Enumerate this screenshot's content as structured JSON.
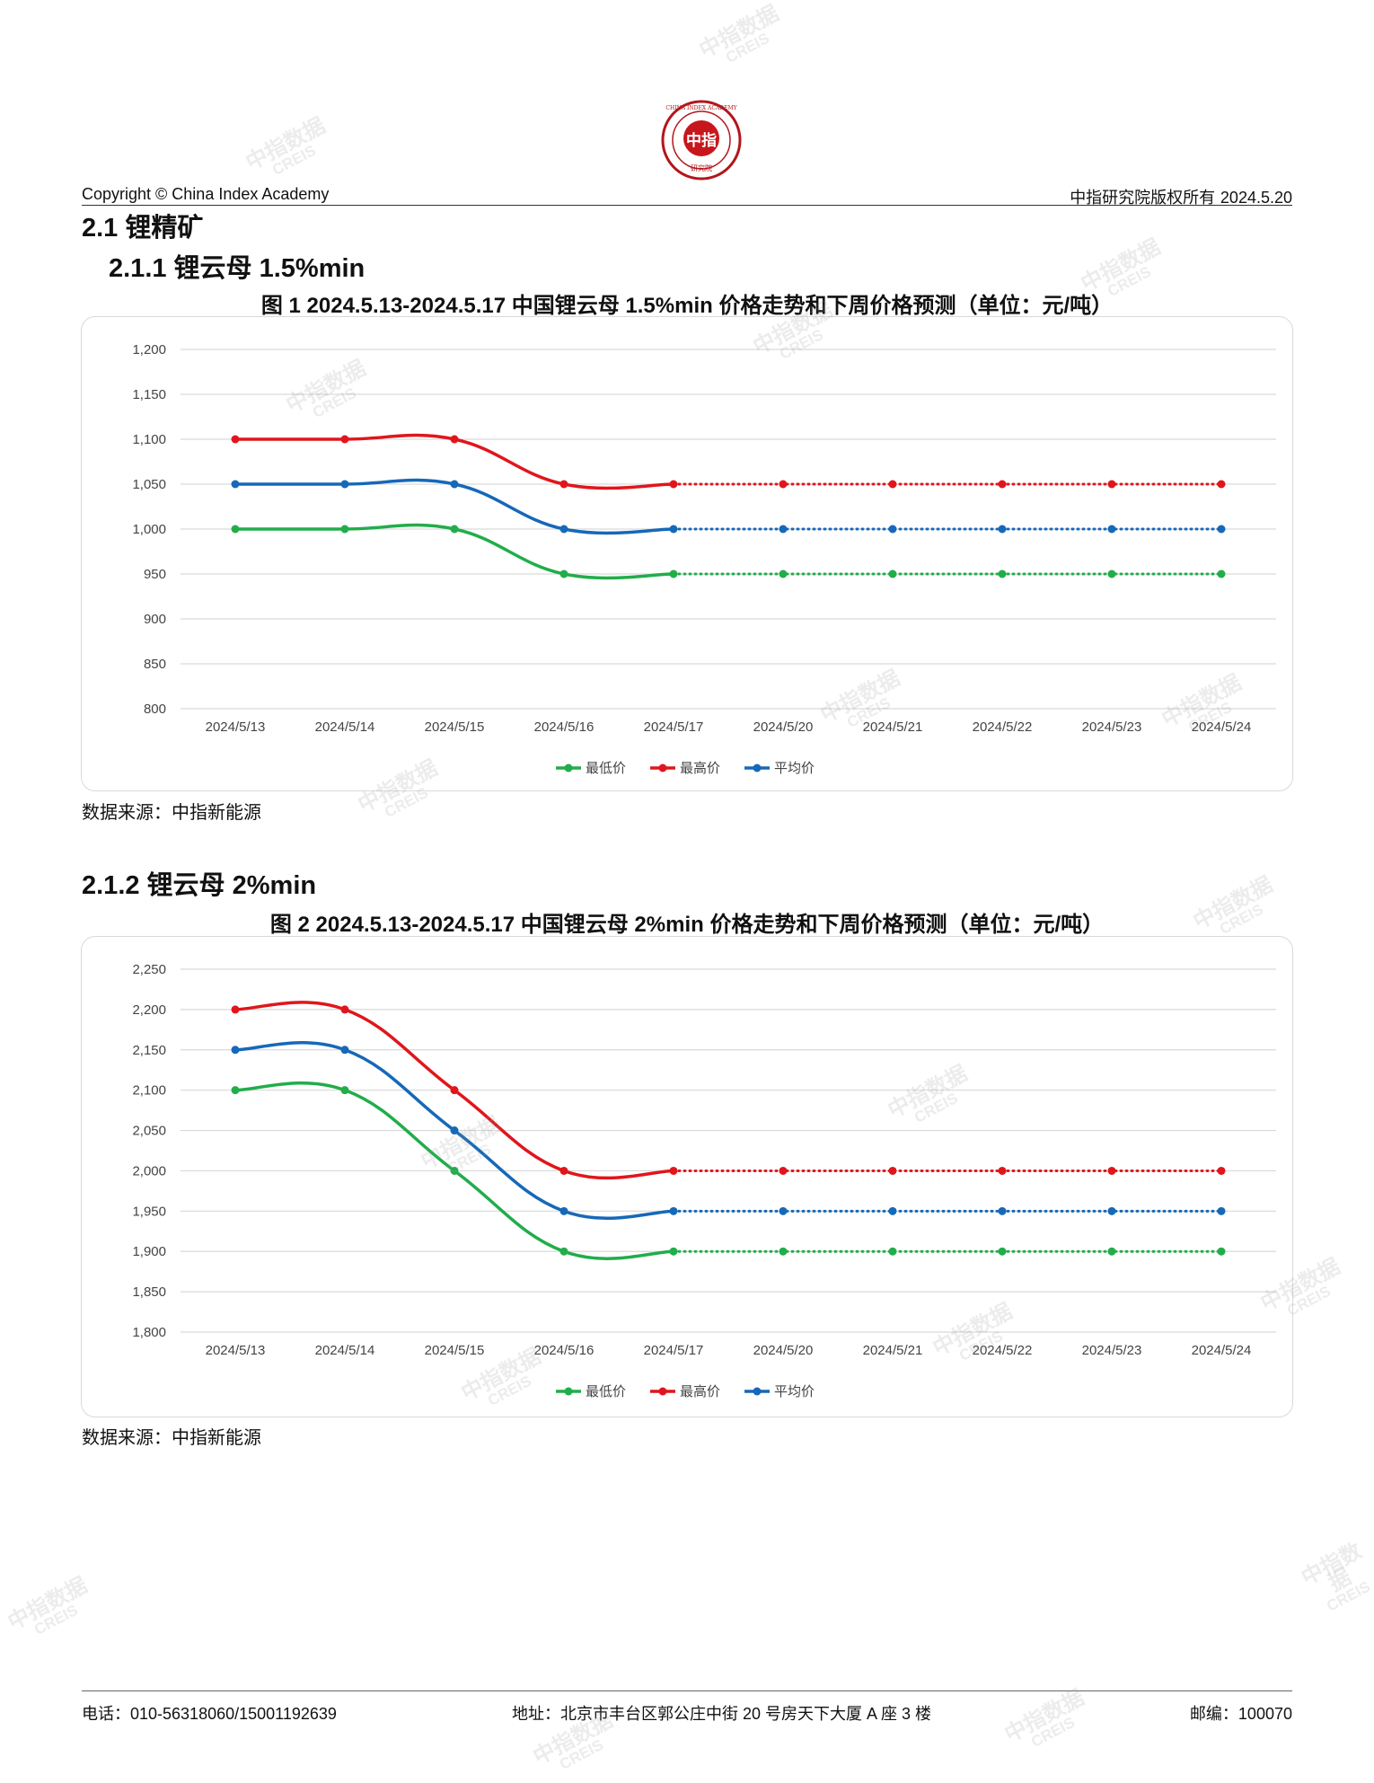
{
  "header": {
    "copyright": "Copyright © China Index Academy",
    "rights": "中指研究院版权所有",
    "date": "2024.5.20",
    "logo_text": "中指",
    "logo_ring": "CHINA INDEX ACADEMY",
    "logo_sub": "研究院"
  },
  "watermark": {
    "line1": "中指数据",
    "line2": "CREIS"
  },
  "section": {
    "h1": "2.1 锂精矿",
    "h2_1": "2.1.1 锂云母 1.5%min",
    "h2_2": "2.1.2 锂云母 2%min"
  },
  "charts": [
    {
      "caption": "图 1 2024.5.13-2024.5.17 中国锂云母 1.5%min 价格走势和下周价格预测（单位：元/吨）",
      "source": "数据来源：中指新能源"
    },
    {
      "caption": "图 2 2024.5.13-2024.5.17 中国锂云母 2%min 价格走势和下周价格预测（单位：元/吨）",
      "source": "数据来源：中指新能源"
    }
  ],
  "chart_data": [
    {
      "type": "line",
      "categories": [
        "2024/5/13",
        "2024/5/14",
        "2024/5/15",
        "2024/5/16",
        "2024/5/17",
        "2024/5/20",
        "2024/5/21",
        "2024/5/22",
        "2024/5/23",
        "2024/5/24"
      ],
      "actual_count": 5,
      "ylim": [
        800,
        1200
      ],
      "yticks": [
        "1,200",
        "1,150",
        "1,100",
        "1,050",
        "1,000",
        "950",
        "900",
        "850",
        "800"
      ],
      "ytick_values": [
        1200,
        1150,
        1100,
        1050,
        1000,
        950,
        900,
        850,
        800
      ],
      "legend_position": "bottom",
      "grid": true,
      "series": [
        {
          "name": "最低价",
          "color": "#21ad4a",
          "values": [
            1000,
            1000,
            1000,
            950,
            950,
            950,
            950,
            950,
            950,
            950
          ]
        },
        {
          "name": "最高价",
          "color": "#e0161c",
          "values": [
            1100,
            1100,
            1100,
            1050,
            1050,
            1050,
            1050,
            1050,
            1050,
            1050
          ]
        },
        {
          "name": "平均价",
          "color": "#1668b8",
          "values": [
            1050,
            1050,
            1050,
            1000,
            1000,
            1000,
            1000,
            1000,
            1000,
            1000
          ]
        }
      ]
    },
    {
      "type": "line",
      "categories": [
        "2024/5/13",
        "2024/5/14",
        "2024/5/15",
        "2024/5/16",
        "2024/5/17",
        "2024/5/20",
        "2024/5/21",
        "2024/5/22",
        "2024/5/23",
        "2024/5/24"
      ],
      "actual_count": 5,
      "ylim": [
        1800,
        2250
      ],
      "yticks": [
        "2,250",
        "2,200",
        "2,150",
        "2,100",
        "2,050",
        "2,000",
        "1,950",
        "1,900",
        "1,850",
        "1,800"
      ],
      "ytick_values": [
        2250,
        2200,
        2150,
        2100,
        2050,
        2000,
        1950,
        1900,
        1850,
        1800
      ],
      "legend_position": "bottom",
      "grid": true,
      "series": [
        {
          "name": "最低价",
          "color": "#21ad4a",
          "values": [
            2100,
            2100,
            2000,
            1900,
            1900,
            1900,
            1900,
            1900,
            1900,
            1900
          ]
        },
        {
          "name": "最高价",
          "color": "#e0161c",
          "values": [
            2200,
            2200,
            2100,
            2000,
            2000,
            2000,
            2000,
            2000,
            2000,
            2000
          ]
        },
        {
          "name": "平均价",
          "color": "#1668b8",
          "values": [
            2150,
            2150,
            2050,
            1950,
            1950,
            1950,
            1950,
            1950,
            1950,
            1950
          ]
        }
      ]
    }
  ],
  "footer": {
    "phone": "电话：010-56318060/15001192639",
    "address": "地址：北京市丰台区郭公庄中街 20 号房天下大厦 A 座 3 楼",
    "zip": "邮编：100070"
  }
}
